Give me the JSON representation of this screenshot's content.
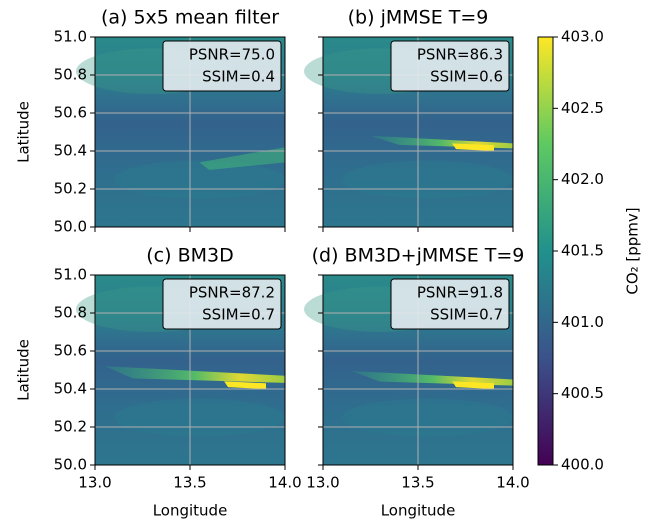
{
  "chart_data": [
    {
      "type": "heatmap",
      "title": "(a) 5x5 mean filter",
      "annotations": [
        "PSNR=75.0",
        "SSIM=0.4"
      ],
      "ylabel": "Latitude",
      "xlim": [
        13.0,
        14.0
      ],
      "ylim": [
        50.0,
        51.0
      ],
      "xticks": [
        {
          "value": 13.0,
          "label": "13.0"
        },
        13.5,
        {
          "value": 14.0,
          "label": "14.0"
        }
      ],
      "yticks": [
        {
          "value": 50.0,
          "label": "50.0"
        },
        50.2,
        50.4,
        50.6,
        50.8,
        {
          "value": 51.0,
          "label": "51.0"
        }
      ],
      "xticklabels": false,
      "yticklabels": true,
      "grid": true
    },
    {
      "type": "heatmap",
      "title": "(b) jMMSE T=9",
      "annotations": [
        "PSNR=86.3",
        "SSIM=0.6"
      ],
      "xlim": [
        13.0,
        14.0
      ],
      "ylim": [
        50.0,
        51.0
      ],
      "xticks": [
        {
          "value": 13.0,
          "label": "13.0"
        },
        13.5,
        {
          "value": 14.0,
          "label": "14.0"
        }
      ],
      "yticks": [
        {
          "value": 50.0,
          "label": "50.0"
        },
        50.2,
        50.4,
        50.6,
        50.8,
        {
          "value": 51.0,
          "label": "51.0"
        }
      ],
      "xticklabels": false,
      "yticklabels": false,
      "grid": true
    },
    {
      "type": "heatmap",
      "title": "(c) BM3D",
      "annotations": [
        "PSNR=87.2",
        "SSIM=0.7"
      ],
      "ylabel": "Latitude",
      "xlabel": "Longitude",
      "xlim": [
        13.0,
        14.0
      ],
      "ylim": [
        50.0,
        51.0
      ],
      "xticks": [
        {
          "value": 13.0,
          "label": "13.0"
        },
        13.5,
        {
          "value": 14.0,
          "label": "14.0"
        }
      ],
      "yticks": [
        {
          "value": 50.0,
          "label": "50.0"
        },
        50.2,
        50.4,
        50.6,
        50.8,
        {
          "value": 51.0,
          "label": "51.0"
        }
      ],
      "xticklabels": true,
      "yticklabels": true,
      "grid": true
    },
    {
      "type": "heatmap",
      "title": "(d) BM3D+jMMSE T=9",
      "annotations": [
        "PSNR=91.8",
        "SSIM=0.7"
      ],
      "xlabel": "Longitude",
      "xlim": [
        13.0,
        14.0
      ],
      "ylim": [
        50.0,
        51.0
      ],
      "xticks": [
        {
          "value": 13.0,
          "label": "13.0"
        },
        13.5,
        {
          "value": 14.0,
          "label": "14.0"
        }
      ],
      "yticks": [
        {
          "value": 50.0,
          "label": "50.0"
        },
        50.2,
        50.4,
        50.6,
        50.8,
        {
          "value": 51.0,
          "label": "51.0"
        }
      ],
      "xticklabels": true,
      "yticklabels": false,
      "grid": true
    }
  ],
  "colorbar": {
    "label": "CO₂ [ppmv]",
    "colormap": "viridis",
    "lim": [
      400.0,
      403.0
    ],
    "ticks": [
      {
        "value": 400.0,
        "label": "400.0"
      },
      400.5,
      {
        "value": 401.0,
        "label": "401.0"
      },
      401.5,
      {
        "value": 402.0,
        "label": "402.0"
      },
      402.5,
      {
        "value": 403.0,
        "label": "403.0"
      }
    ]
  }
}
